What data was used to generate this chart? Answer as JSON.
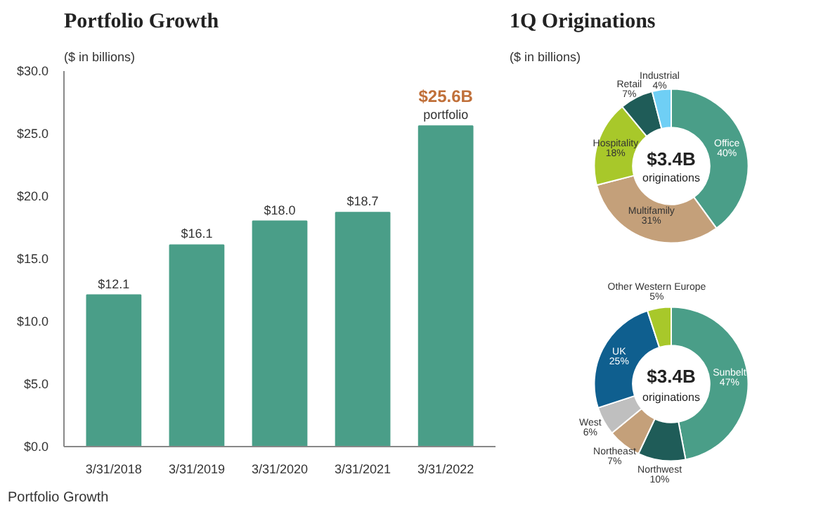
{
  "chart_data": [
    {
      "type": "bar",
      "title": "Portfolio Growth",
      "subtitle": "($ in billions)",
      "categories": [
        "3/31/2018",
        "3/31/2019",
        "3/31/2020",
        "3/31/2021",
        "3/31/2022"
      ],
      "values": [
        12.1,
        16.1,
        18.0,
        18.7,
        25.6
      ],
      "color": "#4a9e88",
      "value_labels": [
        "$12.1",
        "$16.1",
        "$18.0",
        "$18.7",
        null
      ],
      "ylim": [
        0,
        30
      ],
      "yticks": [
        {
          "value": 0,
          "label": "$0.0"
        },
        {
          "value": 5,
          "label": "$5.0"
        },
        {
          "value": 10,
          "label": "$10.0"
        },
        {
          "value": 15,
          "label": "$15.0"
        },
        {
          "value": 20,
          "label": "$20.0"
        },
        {
          "value": 25,
          "label": "$25.0"
        },
        {
          "value": 30,
          "label": "$30.0"
        }
      ],
      "grid": false,
      "legend": false,
      "annotations": [
        {
          "text": "$25.6B",
          "x": "3/31/2022",
          "y": 25.6
        },
        "portfolio",
        "Portfolio Growth"
      ]
    },
    {
      "type": "donut",
      "title": "1Q Originations",
      "subtitle": "($ in billions)",
      "categories": [
        "Office",
        "Multifamily",
        "Hospitality",
        "Retail",
        "Industrial"
      ],
      "values": [
        40,
        31,
        18,
        7,
        4
      ],
      "colors": [
        "#4a9e88",
        "#c4a07a",
        "#a8c82a",
        "#1f5c58",
        "#6fcff5"
      ],
      "value_labels": [
        "40%",
        "31%",
        "18%",
        "7%",
        "4%"
      ],
      "annotations": [
        "$3.4B",
        "originations"
      ]
    },
    {
      "type": "donut",
      "categories": [
        "Sunbelt",
        "Northwest",
        "Northeast",
        "West",
        "UK",
        "Other Western Europe"
      ],
      "values": [
        47,
        10,
        7,
        6,
        25,
        5
      ],
      "colors": [
        "#4a9e88",
        "#1f5c58",
        "#c4a07a",
        "#bfbfbf",
        "#0f5f8f",
        "#a8c82a"
      ],
      "value_labels": [
        "47%",
        "10%",
        "7%",
        "6%",
        "25%",
        "5%"
      ],
      "annotations": [
        "$3.4B",
        "originations"
      ]
    }
  ]
}
